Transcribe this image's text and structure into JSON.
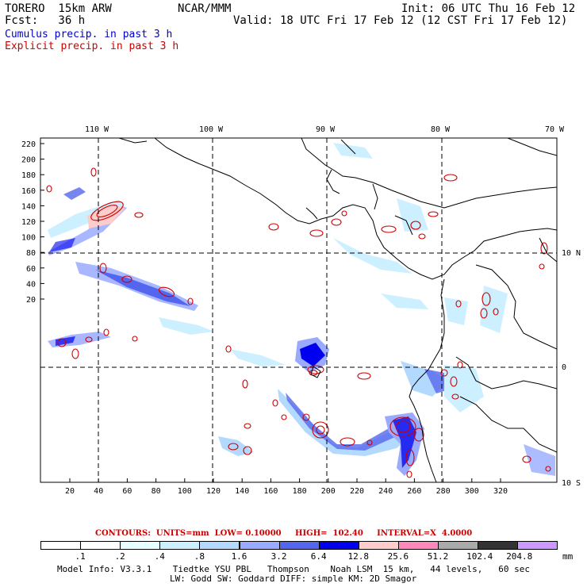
{
  "header": {
    "model": "TORERO  15km ARW",
    "org": "NCAR/MMM",
    "init": "Init: 06 UTC Thu 16 Feb 12",
    "fcst": "Fcst:   36 h",
    "valid": "Valid: 18 UTC Fri 17 Feb 12 (12 CST Fri 17 Feb 12)",
    "field1": "Cumulus precip. in past 3 h",
    "field2": "Explicit precip. in past 3 h",
    "field1_color": "#0000cc",
    "field2_color": "#cc0000"
  },
  "map": {
    "lon_labels": [
      "110 W",
      "100 W",
      "90 W",
      "80 W",
      "70 W"
    ],
    "lat_labels": [
      "10 N",
      "0",
      "10 S"
    ],
    "y_ticks": [
      "220",
      "200",
      "180",
      "160",
      "140",
      "120",
      "100",
      "80",
      "60",
      "40",
      "20"
    ],
    "x_ticks": [
      "20",
      "40",
      "60",
      "80",
      "100",
      "120",
      "140",
      "160",
      "180",
      "200",
      "220",
      "240",
      "260",
      "280",
      "300",
      "320"
    ]
  },
  "contours_line": {
    "label": "CONTOURS:  UNITS=mm  LOW= 0.10000     HIGH=  102.40     INTERVAL=X  4.0000",
    "color": "#cc0000"
  },
  "legend": {
    "values": [
      ".1",
      ".2",
      ".4",
      ".8",
      "1.6",
      "3.2",
      "6.4",
      "12.8",
      "25.6",
      "51.2",
      "102.4",
      "204.8"
    ],
    "unit": "mm",
    "colors": [
      "#ffffff",
      "#ffffff",
      "#e6ffff",
      "#ccf0ff",
      "#b3d9ff",
      "#99aaff",
      "#5566ee",
      "#0000ee",
      "#ffcccc",
      "#ff88bb",
      "#aaaaaa",
      "#333333",
      "#cc99ff"
    ]
  },
  "footer": {
    "line1": "Model Info: V3.3.1    Tiedtke YSU PBL   Thompson    Noah LSM  15 km,   44 levels,   60 sec",
    "line2": "LW: Godd SW: Goddard DIFF: simple KM: 2D Smagor"
  }
}
